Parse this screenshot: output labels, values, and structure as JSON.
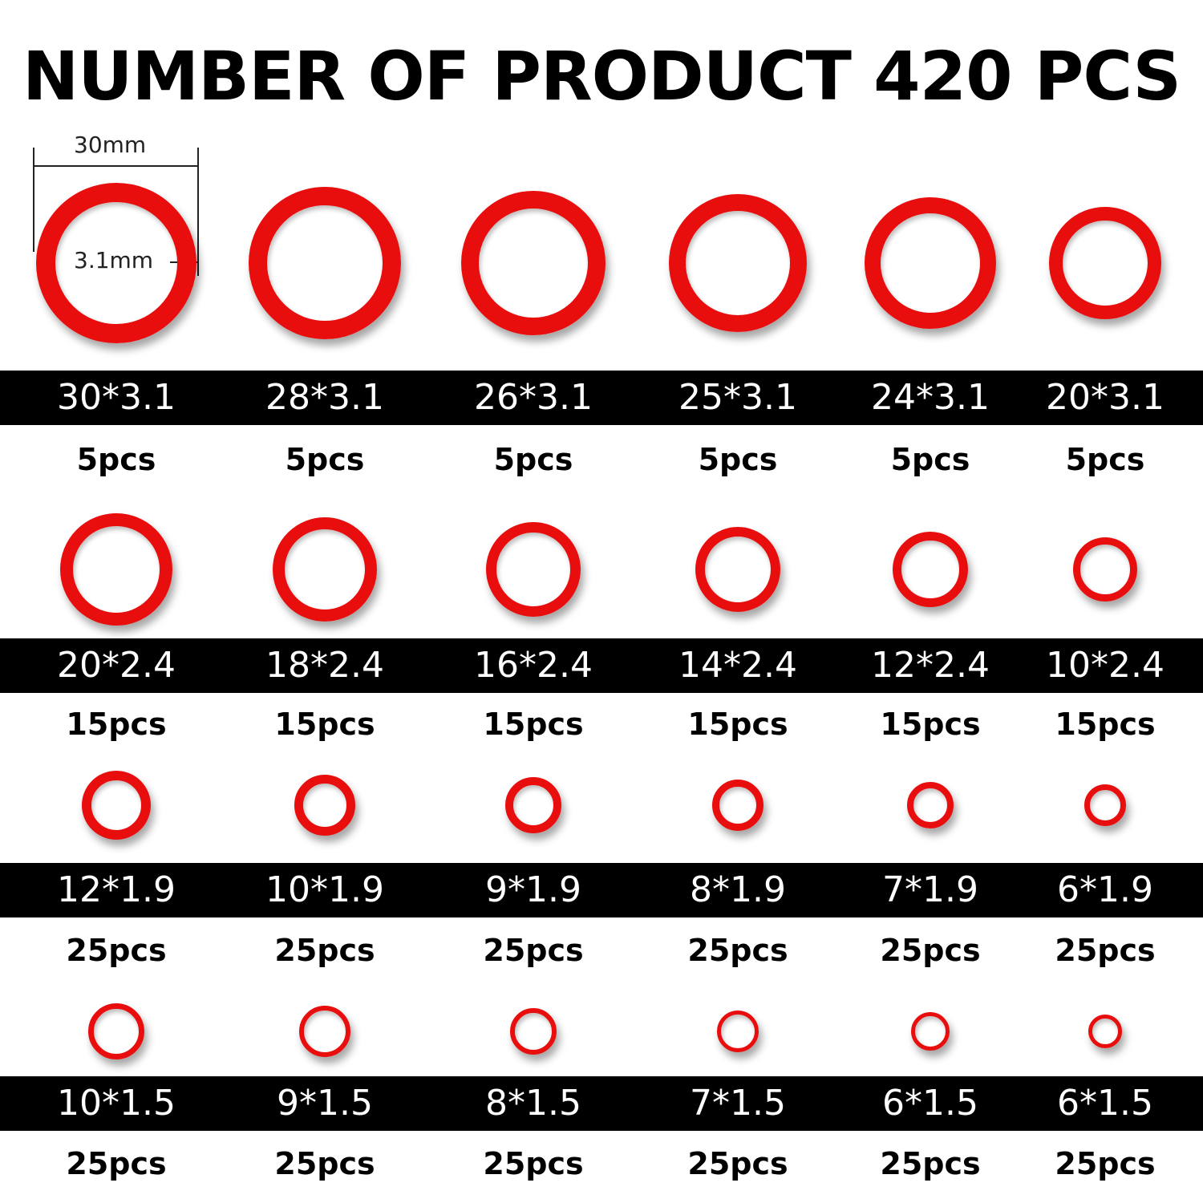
{
  "title": "NUMBER OF PRODUCT 420 PCS",
  "ring_color": "#e80e0e",
  "dimension_annotation": {
    "diameter_label": "30mm",
    "thickness_label": "3.1mm"
  },
  "rows": [
    {
      "items": [
        {
          "size": "30*3.1",
          "qty": "5pcs"
        },
        {
          "size": "28*3.1",
          "qty": "5pcs"
        },
        {
          "size": "26*3.1",
          "qty": "5pcs"
        },
        {
          "size": "25*3.1",
          "qty": "5pcs"
        },
        {
          "size": "24*3.1",
          "qty": "5pcs"
        },
        {
          "size": "20*3.1",
          "qty": "5pcs"
        }
      ]
    },
    {
      "items": [
        {
          "size": "20*2.4",
          "qty": "15pcs"
        },
        {
          "size": "18*2.4",
          "qty": "15pcs"
        },
        {
          "size": "16*2.4",
          "qty": "15pcs"
        },
        {
          "size": "14*2.4",
          "qty": "15pcs"
        },
        {
          "size": "12*2.4",
          "qty": "15pcs"
        },
        {
          "size": "10*2.4",
          "qty": "15pcs"
        }
      ]
    },
    {
      "items": [
        {
          "size": "12*1.9",
          "qty": "25pcs"
        },
        {
          "size": "10*1.9",
          "qty": "25pcs"
        },
        {
          "size": "9*1.9",
          "qty": "25pcs"
        },
        {
          "size": "8*1.9",
          "qty": "25pcs"
        },
        {
          "size": "7*1.9",
          "qty": "25pcs"
        },
        {
          "size": "6*1.9",
          "qty": "25pcs"
        }
      ]
    },
    {
      "items": [
        {
          "size": "10*1.5",
          "qty": "25pcs"
        },
        {
          "size": "9*1.5",
          "qty": "25pcs"
        },
        {
          "size": "8*1.5",
          "qty": "25pcs"
        },
        {
          "size": "7*1.5",
          "qty": "25pcs"
        },
        {
          "size": "6*1.5",
          "qty": "25pcs"
        },
        {
          "size": "6*1.5",
          "qty": "25pcs"
        }
      ]
    }
  ]
}
